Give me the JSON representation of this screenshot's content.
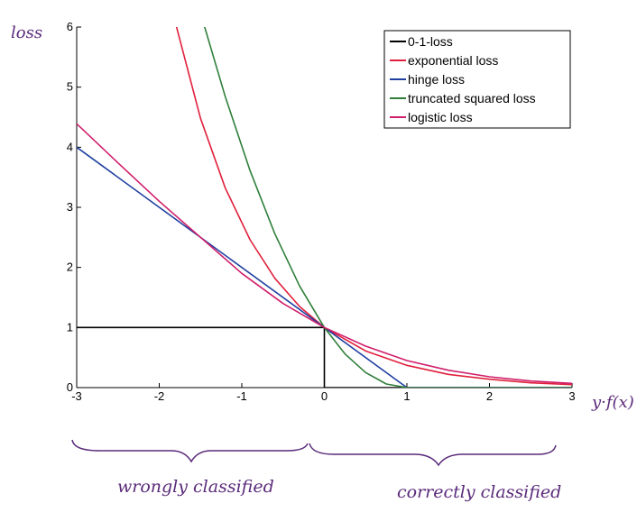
{
  "chart_data": {
    "type": "line",
    "title": "",
    "ylabel": "loss",
    "xlabel": "y·f(x)",
    "xlim": [
      -3,
      3
    ],
    "ylim": [
      0,
      6
    ],
    "x_ticks": [
      "-3",
      "-2",
      "-1",
      "0",
      "1",
      "2",
      "3"
    ],
    "y_ticks": [
      "0",
      "1",
      "2",
      "3",
      "4",
      "5",
      "6"
    ],
    "grid": false,
    "legend_position": "top-right",
    "series": [
      {
        "name": "0-1-loss",
        "color": "#000000",
        "x": [
          -3,
          0,
          0,
          0,
          3
        ],
        "y": [
          1,
          1,
          1,
          0,
          0
        ]
      },
      {
        "name": "exponential loss",
        "color": "#e0203c",
        "x": [
          -1.8,
          -1.5,
          -1.2,
          -0.9,
          -0.6,
          -0.3,
          0,
          0.5,
          1,
          1.5,
          2,
          2.5,
          3
        ],
        "y": [
          6.05,
          4.48,
          3.32,
          2.46,
          1.82,
          1.35,
          1,
          0.61,
          0.37,
          0.22,
          0.14,
          0.08,
          0.05
        ]
      },
      {
        "name": "hinge loss",
        "color": "#2040a0",
        "x": [
          -3,
          1,
          3
        ],
        "y": [
          4,
          0,
          0
        ]
      },
      {
        "name": "truncated squared loss",
        "color": "#2f7f3a",
        "x": [
          -1.45,
          -1.2,
          -0.9,
          -0.6,
          -0.3,
          0,
          0.25,
          0.5,
          0.75,
          1,
          3
        ],
        "y": [
          6.0,
          4.84,
          3.61,
          2.56,
          1.69,
          1,
          0.56,
          0.25,
          0.06,
          0,
          0
        ]
      },
      {
        "name": "logistic loss",
        "color": "#d01e6a",
        "x": [
          -3,
          -2.5,
          -2,
          -1.5,
          -1,
          -0.5,
          0,
          0.5,
          1,
          1.5,
          2,
          2.5,
          3
        ],
        "y": [
          4.39,
          3.74,
          3.1,
          2.5,
          1.9,
          1.4,
          1,
          0.69,
          0.45,
          0.29,
          0.18,
          0.11,
          0.07
        ]
      }
    ],
    "annotations": {
      "left_region": "wrongly classified",
      "right_region": "correctly classified"
    }
  }
}
